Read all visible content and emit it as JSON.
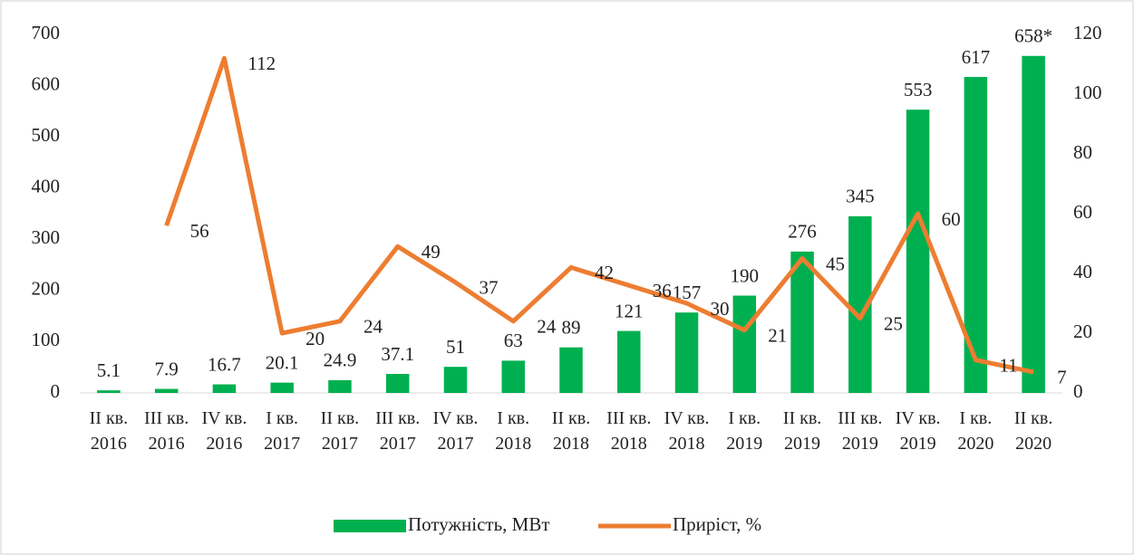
{
  "chart_data": {
    "type": "bar",
    "categories": [
      "II кв. 2016",
      "III кв. 2016",
      "IV кв. 2016",
      "I кв. 2017",
      "II кв. 2017",
      "III кв. 2017",
      "IV кв. 2017",
      "I кв. 2018",
      "II кв. 2018",
      "III кв. 2018",
      "IV кв. 2018",
      "I кв. 2019",
      "II кв. 2019",
      "III кв. 2019",
      "IV кв. 2019",
      "I кв. 2020",
      "II кв. 2020"
    ],
    "series": [
      {
        "name": "Потужність, МВт",
        "type": "bar",
        "color": "#00b050",
        "values": [
          5.1,
          7.9,
          16.7,
          20.1,
          24.9,
          37.1,
          51,
          63,
          89,
          121,
          157,
          190,
          276,
          345,
          553,
          617,
          658
        ],
        "value_labels": [
          "5.1",
          "7.9",
          "16.7",
          "20.1",
          "24.9",
          "37.1",
          "51",
          "63",
          "89",
          "121",
          "157",
          "190",
          "276",
          "345",
          "553",
          "617",
          "658*"
        ]
      },
      {
        "name": "Приріст, %",
        "type": "line",
        "axis": "y2",
        "color": "#ed7d31",
        "values": [
          null,
          56,
          112,
          20,
          24,
          49,
          37,
          24,
          42,
          36,
          30,
          21,
          45,
          25,
          60,
          11,
          7
        ]
      }
    ],
    "ylim": [
      0,
      700
    ],
    "yticks": [
      0,
      100,
      200,
      300,
      400,
      500,
      600,
      700
    ],
    "y2lim": [
      0,
      120
    ],
    "y2ticks": [
      0,
      20,
      40,
      60,
      80,
      100,
      120
    ],
    "legend": "bottom"
  }
}
